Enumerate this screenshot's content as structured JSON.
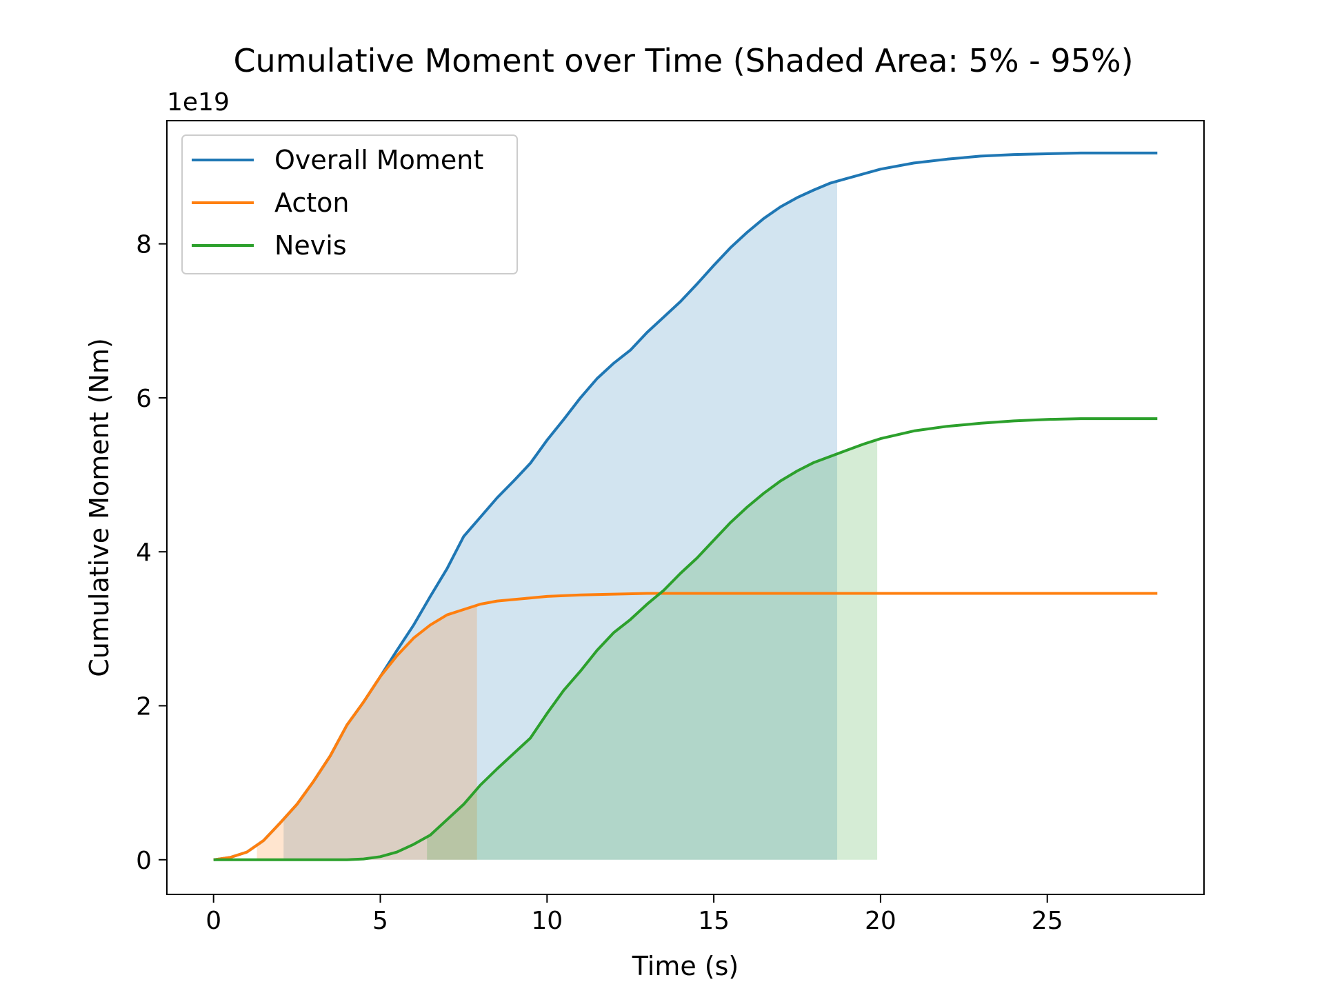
{
  "chart_data": {
    "type": "line",
    "title": "Cumulative Moment over Time (Shaded Area: 5% - 95%)",
    "xlabel": "Time (s)",
    "ylabel": "Cumulative Moment (Nm)",
    "y_offset_label": "1e19",
    "xlim": [
      -1.4,
      29.7
    ],
    "ylim": [
      -0.45,
      9.6
    ],
    "x_ticks": [
      0,
      5,
      10,
      15,
      20,
      25
    ],
    "y_ticks": [
      0,
      2,
      4,
      6,
      8
    ],
    "grid": false,
    "legend_position": "top-left",
    "series": [
      {
        "name": "Overall Moment",
        "color": "#1f77b4",
        "shade_range": [
          2.1,
          18.7
        ],
        "x": [
          0,
          0.5,
          1,
          1.5,
          2,
          2.5,
          3,
          3.5,
          4,
          4.5,
          5,
          5.5,
          6,
          6.5,
          7,
          7.5,
          8,
          8.5,
          9,
          9.5,
          10,
          10.5,
          11,
          11.5,
          12,
          12.5,
          13,
          13.5,
          14,
          14.5,
          15,
          15.5,
          16,
          16.5,
          17,
          17.5,
          18,
          18.5,
          19,
          20,
          21,
          22,
          23,
          24,
          25,
          26,
          27,
          28.3
        ],
        "y": [
          0,
          0.03,
          0.1,
          0.25,
          0.48,
          0.72,
          1.02,
          1.35,
          1.75,
          2.05,
          2.38,
          2.72,
          3.05,
          3.42,
          3.78,
          4.2,
          4.45,
          4.7,
          4.92,
          5.15,
          5.45,
          5.72,
          6.0,
          6.25,
          6.45,
          6.62,
          6.85,
          7.05,
          7.25,
          7.48,
          7.72,
          7.95,
          8.15,
          8.33,
          8.48,
          8.6,
          8.7,
          8.79,
          8.85,
          8.97,
          9.05,
          9.1,
          9.14,
          9.16,
          9.17,
          9.18,
          9.18,
          9.18
        ]
      },
      {
        "name": "Acton",
        "color": "#ff7f0e",
        "shade_range": [
          1.3,
          7.9
        ],
        "x": [
          0,
          0.5,
          1,
          1.5,
          2,
          2.5,
          3,
          3.5,
          4,
          4.5,
          5,
          5.5,
          6,
          6.5,
          7,
          7.5,
          8,
          8.5,
          9,
          10,
          11,
          12,
          13,
          14,
          15,
          16,
          17,
          18,
          19,
          20,
          22,
          24,
          26,
          28.3
        ],
        "y": [
          0,
          0.03,
          0.1,
          0.25,
          0.48,
          0.72,
          1.02,
          1.35,
          1.75,
          2.05,
          2.38,
          2.65,
          2.88,
          3.05,
          3.18,
          3.25,
          3.32,
          3.36,
          3.38,
          3.42,
          3.44,
          3.45,
          3.46,
          3.46,
          3.46,
          3.46,
          3.46,
          3.46,
          3.46,
          3.46,
          3.46,
          3.46,
          3.46,
          3.46
        ]
      },
      {
        "name": "Nevis",
        "color": "#2ca02c",
        "shade_range": [
          6.4,
          19.9
        ],
        "x": [
          0,
          1,
          2,
          3,
          4,
          4.5,
          5,
          5.5,
          6,
          6.5,
          7,
          7.5,
          8,
          8.5,
          9,
          9.5,
          10,
          10.5,
          11,
          11.5,
          12,
          12.5,
          13,
          13.5,
          14,
          14.5,
          15,
          15.5,
          16,
          16.5,
          17,
          17.5,
          18,
          18.5,
          19,
          19.5,
          20,
          21,
          22,
          23,
          24,
          25,
          26,
          27,
          28.3
        ],
        "y": [
          0,
          0,
          0,
          0,
          0,
          0.01,
          0.04,
          0.1,
          0.2,
          0.32,
          0.52,
          0.72,
          0.97,
          1.18,
          1.38,
          1.58,
          1.9,
          2.2,
          2.45,
          2.72,
          2.95,
          3.12,
          3.32,
          3.5,
          3.72,
          3.92,
          4.15,
          4.38,
          4.58,
          4.76,
          4.92,
          5.05,
          5.16,
          5.24,
          5.32,
          5.4,
          5.47,
          5.57,
          5.63,
          5.67,
          5.7,
          5.72,
          5.73,
          5.73,
          5.73
        ]
      }
    ]
  }
}
